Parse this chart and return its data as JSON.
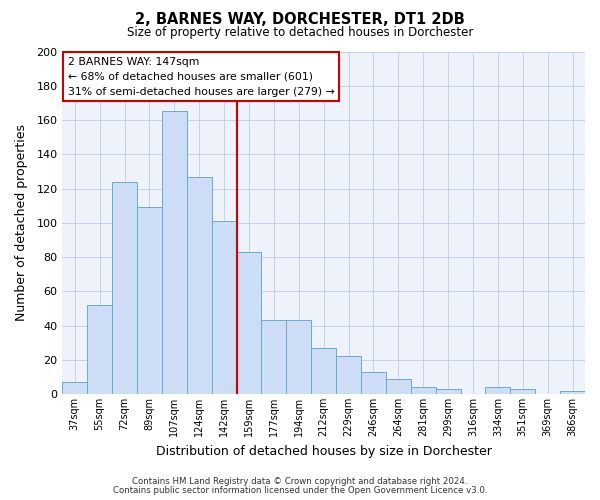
{
  "title": "2, BARNES WAY, DORCHESTER, DT1 2DB",
  "subtitle": "Size of property relative to detached houses in Dorchester",
  "xlabel": "Distribution of detached houses by size in Dorchester",
  "ylabel": "Number of detached properties",
  "bin_labels": [
    "37sqm",
    "55sqm",
    "72sqm",
    "89sqm",
    "107sqm",
    "124sqm",
    "142sqm",
    "159sqm",
    "177sqm",
    "194sqm",
    "212sqm",
    "229sqm",
    "246sqm",
    "264sqm",
    "281sqm",
    "299sqm",
    "316sqm",
    "334sqm",
    "351sqm",
    "369sqm",
    "386sqm"
  ],
  "bar_heights": [
    7,
    52,
    124,
    109,
    165,
    127,
    101,
    83,
    43,
    43,
    27,
    22,
    13,
    9,
    4,
    3,
    0,
    4,
    3,
    0,
    2
  ],
  "bar_color": "#ccddf5",
  "bar_edge_color": "#6aaad4",
  "vline_x_idx": 6,
  "vline_color": "#cc0000",
  "annotation_title": "2 BARNES WAY: 147sqm",
  "annotation_line1": "← 68% of detached houses are smaller (601)",
  "annotation_line2": "31% of semi-detached houses are larger (279) →",
  "ylim": [
    0,
    200
  ],
  "yticks": [
    0,
    20,
    40,
    60,
    80,
    100,
    120,
    140,
    160,
    180,
    200
  ],
  "footer_line1": "Contains HM Land Registry data © Crown copyright and database right 2024.",
  "footer_line2": "Contains public sector information licensed under the Open Government Licence v3.0.",
  "bg_color": "#eef2fb",
  "grid_color": "#c8d0e8"
}
